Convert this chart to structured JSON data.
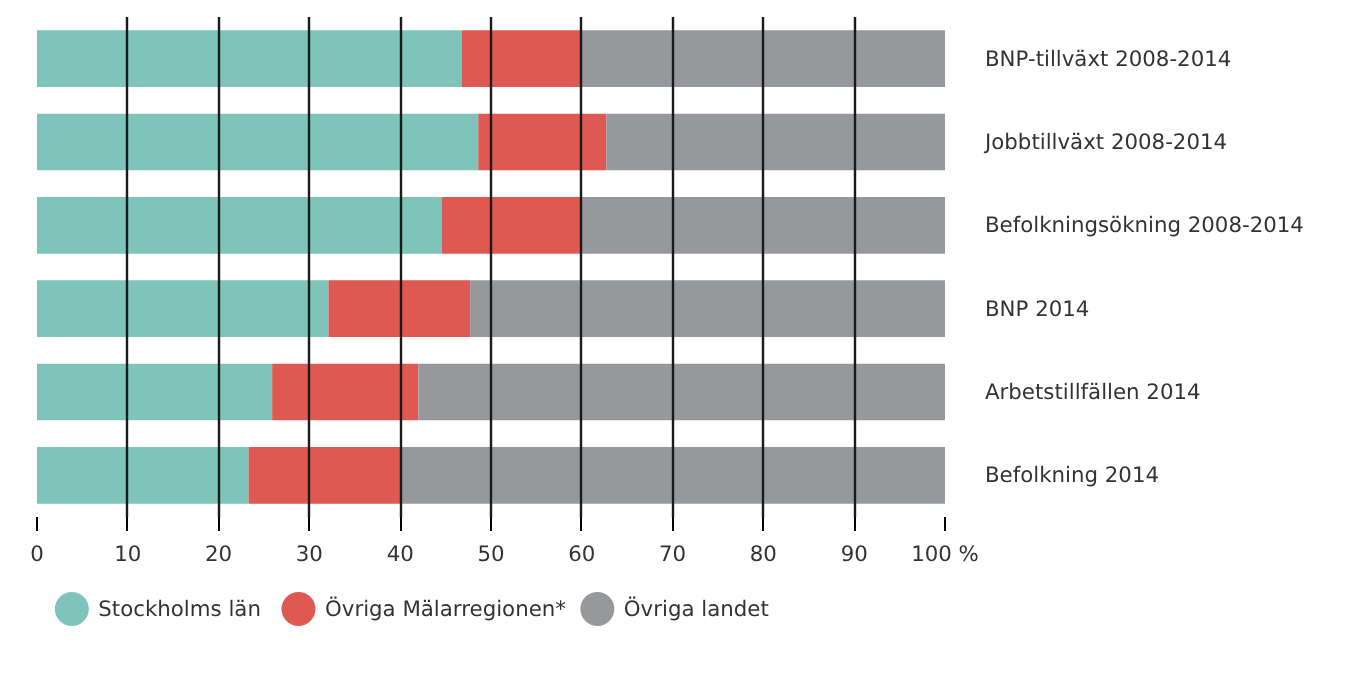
{
  "chart_data": {
    "type": "bar",
    "orientation": "horizontal",
    "stacked": true,
    "categories": [
      "BNP-tillväxt 2008-2014",
      "Jobbtillväxt 2008-2014",
      "Befolkningsökning 2008-2014",
      "BNP 2014",
      "Arbetstillfällen 2014",
      "Befolkning 2014"
    ],
    "series": [
      {
        "name": "Stockholms län",
        "color": "#7fc4ba",
        "values": [
          46.8,
          48.6,
          44.6,
          32.1,
          25.9,
          23.3
        ]
      },
      {
        "name": "Övriga Mälarregionen*",
        "color": "#de5952",
        "values": [
          13.2,
          14.1,
          15.4,
          15.6,
          16.1,
          16.7
        ]
      },
      {
        "name": "Övriga landet",
        "color": "#97989b",
        "values": [
          40.0,
          37.3,
          40.0,
          52.3,
          58.0,
          60.0
        ]
      }
    ],
    "xlim": [
      0,
      100
    ],
    "xticks": [
      0,
      10,
      20,
      30,
      40,
      50,
      60,
      70,
      80,
      90,
      {
        "value": 100,
        "label": "100 %"
      }
    ],
    "grid": "x",
    "legend": "bottom"
  }
}
